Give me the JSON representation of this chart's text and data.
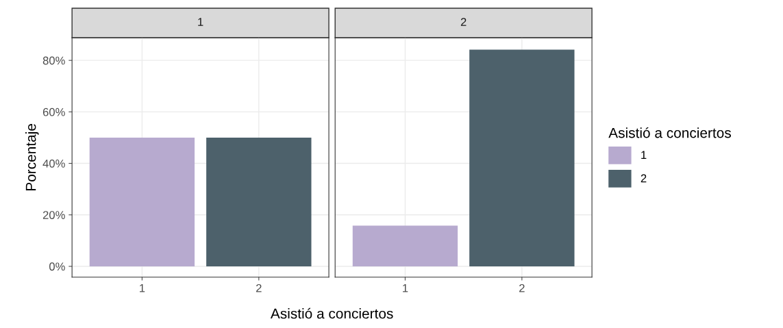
{
  "chart_data": [
    {
      "type": "bar",
      "title": "1",
      "ylabel": "Porcentaje",
      "xlabel": "Asistió a conciertos",
      "categories": [
        "1",
        "2"
      ],
      "legend_title": "Asistió a conciertos",
      "legend": "right",
      "series": [
        {
          "name": "1",
          "color": "#b7aacf",
          "values": [
            50,
            null
          ]
        },
        {
          "name": "2",
          "color": "#4d616b",
          "values": [
            null,
            50
          ]
        }
      ],
      "ylim": [
        -4.2,
        88.8
      ],
      "yticks": [
        {
          "value": 0,
          "label": "0%"
        },
        {
          "value": 20,
          "label": "20%"
        },
        {
          "value": 40,
          "label": "40%"
        },
        {
          "value": 60,
          "label": "60%"
        },
        {
          "value": 80,
          "label": "80%"
        }
      ],
      "grid": true
    },
    {
      "type": "bar",
      "title": "2",
      "categories": [
        "1",
        "2"
      ],
      "series": [
        {
          "color": "#b7aacf",
          "values": [
            15.8,
            null
          ]
        },
        {
          "color": "#4d616b",
          "values": [
            null,
            84.2
          ]
        }
      ],
      "ylim": [
        -4.2,
        88.8
      ],
      "yticks": [
        {
          "value": 0,
          "label": null
        },
        {
          "value": 20,
          "label": null
        },
        {
          "value": 40,
          "label": null
        },
        {
          "value": 60,
          "label": null
        },
        {
          "value": 80,
          "label": null
        }
      ],
      "grid": true,
      "tick_labels": "x"
    }
  ]
}
